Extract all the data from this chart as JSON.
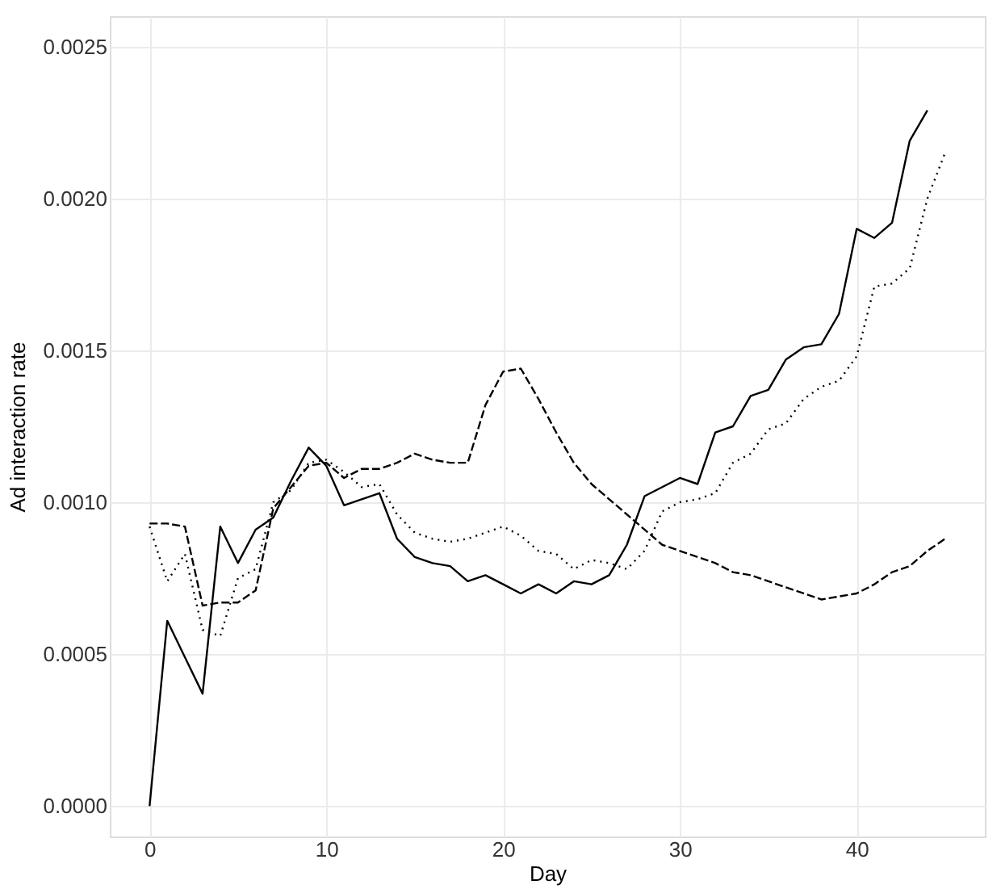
{
  "chart_data": {
    "type": "line",
    "xlabel": "Day",
    "ylabel": "Ad interaction rate",
    "xlim": [
      -2.25,
      47.25
    ],
    "xticks": [
      0,
      10,
      20,
      30,
      40
    ],
    "ylim": [
      -0.0001,
      0.0026
    ],
    "yticks": [
      {
        "value": 0,
        "label": "0.0000"
      },
      {
        "value": 0.0005,
        "label": "0.0005"
      },
      {
        "value": 0.001,
        "label": "0.0010"
      },
      {
        "value": 0.0015,
        "label": "0.0015"
      },
      {
        "value": 0.002,
        "label": "0.0020"
      },
      {
        "value": 0.0025,
        "label": "0.0025"
      }
    ],
    "grid": true,
    "marker": "none",
    "series": [
      {
        "color": "#000000",
        "line_style": "solid",
        "x": [
          0,
          1,
          2,
          3,
          4,
          5,
          6,
          7,
          8,
          9,
          10,
          11,
          12,
          13,
          14,
          15,
          16,
          17,
          18,
          19,
          20,
          21,
          22,
          23,
          24,
          25,
          26,
          27,
          28,
          29,
          30,
          31,
          32,
          33,
          34,
          35,
          36,
          37,
          38,
          39,
          40,
          41,
          42,
          43,
          44
        ],
        "values": [
          0,
          0.00061,
          0.00049,
          0.00037,
          0.00092,
          0.0008,
          0.00091,
          0.00095,
          0.00107,
          0.00118,
          0.00112,
          0.00099,
          0.00101,
          0.00103,
          0.00088,
          0.00082,
          0.0008,
          0.00079,
          0.00074,
          0.00076,
          0.00073,
          0.0007,
          0.00073,
          0.0007,
          0.00074,
          0.00073,
          0.00076,
          0.00086,
          0.00102,
          0.00105,
          0.00108,
          0.00106,
          0.00123,
          0.00125,
          0.00135,
          0.00137,
          0.00147,
          0.00151,
          0.00152,
          0.00162,
          0.0019,
          0.00187,
          0.00192,
          0.00219,
          0.00229
        ]
      },
      {
        "color": "#000000",
        "line_style": "dashed",
        "x": [
          0,
          1,
          2,
          3,
          4,
          5,
          6,
          7,
          8,
          9,
          10,
          11,
          12,
          13,
          14,
          15,
          16,
          17,
          18,
          19,
          20,
          21,
          22,
          23,
          24,
          25,
          26,
          27,
          28,
          29,
          30,
          31,
          32,
          33,
          34,
          35,
          36,
          37,
          38,
          39,
          40,
          41,
          42,
          43,
          44,
          45
        ],
        "values": [
          0.00093,
          0.00093,
          0.00092,
          0.00066,
          0.00067,
          0.00067,
          0.00071,
          0.00098,
          0.00105,
          0.00112,
          0.00113,
          0.00108,
          0.00111,
          0.00111,
          0.00113,
          0.00116,
          0.00114,
          0.00113,
          0.00113,
          0.00132,
          0.00143,
          0.00144,
          0.00134,
          0.00123,
          0.00113,
          0.00106,
          0.00101,
          0.00096,
          0.00091,
          0.00086,
          0.00084,
          0.00082,
          0.0008,
          0.00077,
          0.00076,
          0.00074,
          0.00072,
          0.0007,
          0.00068,
          0.00069,
          0.0007,
          0.00073,
          0.00077,
          0.00079,
          0.00084,
          0.00088
        ]
      },
      {
        "color": "#000000",
        "line_style": "dotted",
        "x": [
          0,
          1,
          2,
          3,
          4,
          5,
          6,
          7,
          8,
          9,
          10,
          11,
          12,
          13,
          14,
          15,
          16,
          17,
          18,
          19,
          20,
          21,
          22,
          23,
          24,
          25,
          26,
          27,
          28,
          29,
          30,
          31,
          32,
          33,
          34,
          35,
          36,
          37,
          38,
          39,
          40,
          41,
          42,
          43,
          44,
          45
        ],
        "values": [
          0.00092,
          0.00074,
          0.00083,
          0.00058,
          0.00056,
          0.00075,
          0.00078,
          0.001,
          0.00104,
          0.00113,
          0.00114,
          0.0011,
          0.00105,
          0.00106,
          0.00096,
          0.0009,
          0.00088,
          0.00087,
          0.00088,
          0.0009,
          0.00092,
          0.00089,
          0.00084,
          0.00083,
          0.00078,
          0.00081,
          0.0008,
          0.00078,
          0.00084,
          0.00097,
          0.001,
          0.00101,
          0.00103,
          0.00113,
          0.00116,
          0.00124,
          0.00126,
          0.00134,
          0.00138,
          0.0014,
          0.00148,
          0.00171,
          0.00172,
          0.00177,
          0.002,
          0.00215
        ]
      }
    ]
  }
}
